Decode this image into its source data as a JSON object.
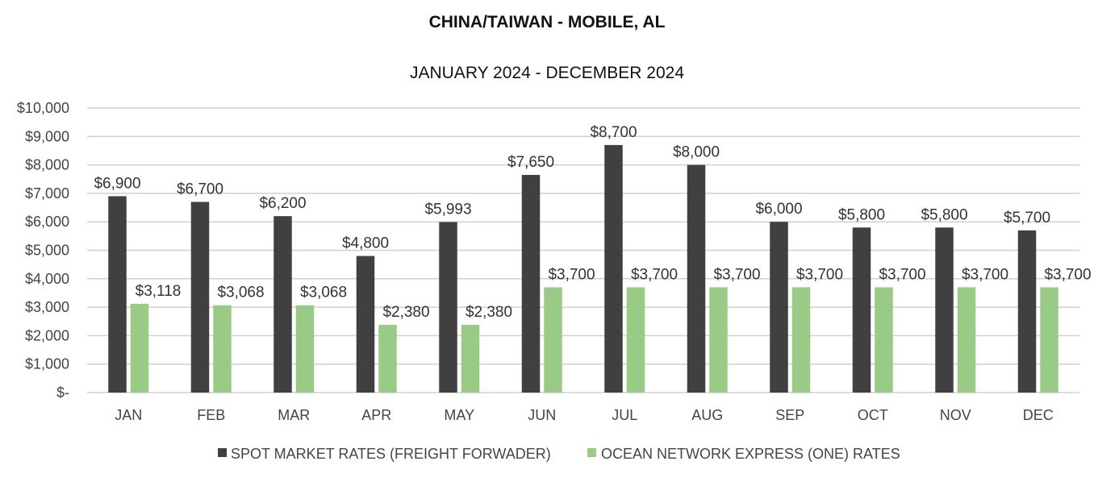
{
  "chart_data": {
    "type": "bar",
    "title": "CHINA/TAIWAN - MOBILE, AL",
    "subtitle": "JANUARY 2024 - DECEMBER 2024",
    "categories": [
      "JAN",
      "FEB",
      "MAR",
      "APR",
      "MAY",
      "JUN",
      "JUL",
      "AUG",
      "SEP",
      "OCT",
      "NOV",
      "DEC"
    ],
    "series": [
      {
        "name": "SPOT MARKET RATES (FREIGHT FORWADER)",
        "color": "#404040",
        "values": [
          6900,
          6700,
          6200,
          4800,
          5993,
          7650,
          8700,
          8000,
          6000,
          5800,
          5800,
          5700
        ],
        "labels": [
          "$6,900",
          "$6,700",
          "$6,200",
          "$4,800",
          "$5,993",
          "$7,650",
          "$8,700",
          "$8,000",
          "$6,000",
          "$5,800",
          "$5,800",
          "$5,700"
        ]
      },
      {
        "name": "OCEAN NETWORK EXPRESS (ONE) RATES",
        "color": "#9ACB86",
        "values": [
          3118,
          3068,
          3068,
          2380,
          2380,
          3700,
          3700,
          3700,
          3700,
          3700,
          3700,
          3700
        ],
        "labels": [
          "$3,118",
          "$3,068",
          "$3,068",
          "$2,380",
          "$2,380",
          "$3,700",
          "$3,700",
          "$3,700",
          "$3,700",
          "$3,700",
          "$3,700",
          "$3,700"
        ]
      }
    ],
    "ylim": [
      0,
      10000
    ],
    "yticks": [
      0,
      1000,
      2000,
      3000,
      4000,
      5000,
      6000,
      7000,
      8000,
      9000,
      10000
    ],
    "ytick_labels": [
      "$-",
      "$1,000",
      "$2,000",
      "$3,000",
      "$4,000",
      "$5,000",
      "$6,000",
      "$7,000",
      "$8,000",
      "$9,000",
      "$10,000"
    ],
    "xlabel": "",
    "ylabel": "",
    "grid": true,
    "legend": "bottom"
  }
}
